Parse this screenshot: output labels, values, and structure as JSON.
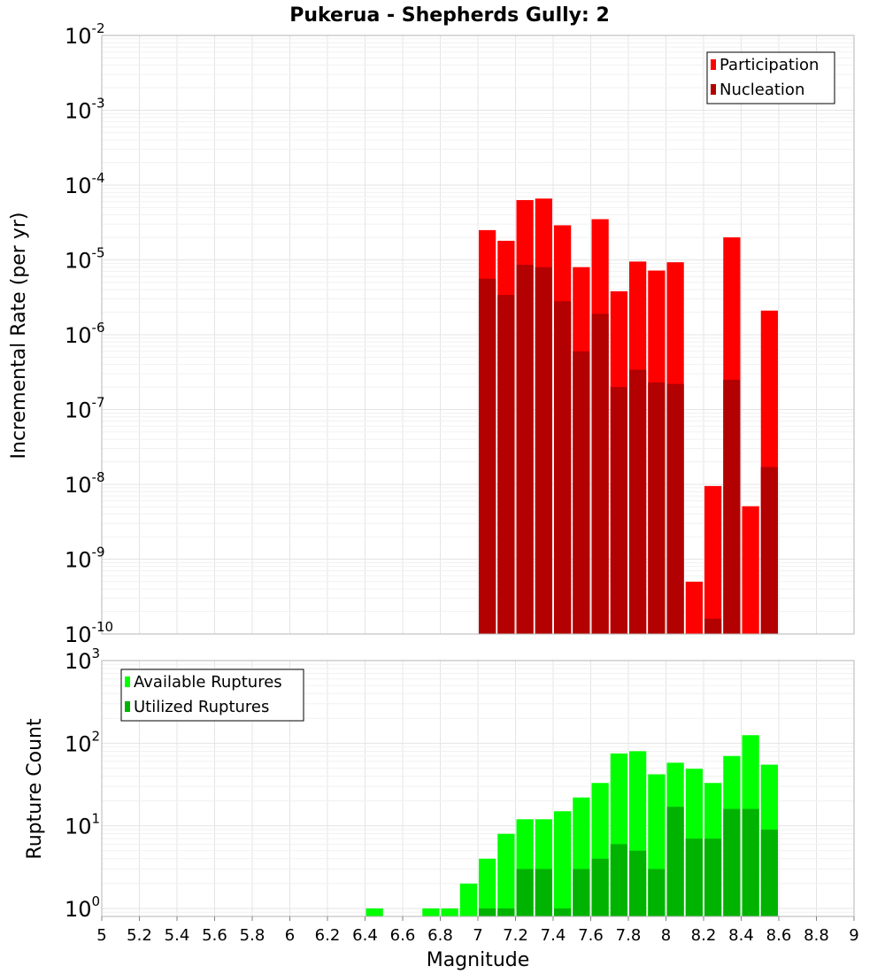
{
  "chart_data": [
    {
      "type": "bar",
      "title": "Pukerua - Shepherds Gully: 2",
      "xlabel": "",
      "ylabel": "Incremental Rate (per yr)",
      "yscale": "log",
      "ylim": [
        1e-10,
        0.01
      ],
      "xlim": [
        5,
        9
      ],
      "legend": {
        "placement": "top-right",
        "entries": [
          "Participation",
          "Nucleation"
        ]
      },
      "series": [
        {
          "name": "Participation",
          "color": "#ff0000",
          "x": [
            7.0,
            7.1,
            7.2,
            7.3,
            7.4,
            7.5,
            7.6,
            7.7,
            7.8,
            7.9,
            8.0,
            8.1,
            8.2,
            8.3,
            8.4,
            8.5
          ],
          "values": [
            2.5e-05,
            1.8e-05,
            6.3e-05,
            6.6e-05,
            2.9e-05,
            8e-06,
            3.5e-05,
            3.8e-06,
            9.5e-06,
            7.2e-06,
            9.3e-06,
            5e-10,
            9.5e-09,
            2e-05,
            5.1e-09,
            2.1e-06
          ]
        },
        {
          "name": "Nucleation",
          "color": "#b30000",
          "x": [
            7.0,
            7.1,
            7.2,
            7.3,
            7.4,
            7.5,
            7.6,
            7.7,
            7.8,
            7.9,
            8.0,
            8.2,
            8.3,
            8.5
          ],
          "values": [
            5.6e-06,
            3.4e-06,
            8.6e-06,
            8e-06,
            2.8e-06,
            6e-07,
            1.9e-06,
            2e-07,
            3.4e-07,
            2.3e-07,
            2.2e-07,
            1.6e-10,
            2.5e-07,
            1.7e-08
          ]
        }
      ]
    },
    {
      "type": "bar",
      "title": "",
      "xlabel": "Magnitude",
      "ylabel": "Rupture Count",
      "yscale": "log",
      "ylim": [
        0.8,
        1000
      ],
      "xlim": [
        5,
        9
      ],
      "xticks": [
        "5",
        "5.2",
        "5.4",
        "5.6",
        "5.8",
        "6",
        "6.2",
        "6.4",
        "6.6",
        "6.8",
        "7",
        "7.2",
        "7.4",
        "7.6",
        "7.8",
        "8",
        "8.2",
        "8.4",
        "8.6",
        "8.8",
        "9"
      ],
      "legend": {
        "placement": "top-left",
        "entries": [
          "Available Ruptures",
          "Utilized Ruptures"
        ]
      },
      "series": [
        {
          "name": "Available Ruptures",
          "color": "#00ff00",
          "x": [
            6.4,
            6.7,
            6.8,
            6.9,
            7.0,
            7.1,
            7.2,
            7.3,
            7.4,
            7.5,
            7.6,
            7.7,
            7.8,
            7.9,
            8.0,
            8.1,
            8.2,
            8.3,
            8.4,
            8.5
          ],
          "values": [
            1,
            1,
            1,
            2,
            4,
            8,
            12,
            12,
            15,
            22,
            33,
            75,
            80,
            42,
            58,
            49,
            33,
            70,
            125,
            55
          ]
        },
        {
          "name": "Utilized Ruptures",
          "color": "#00b300",
          "x": [
            7.0,
            7.1,
            7.2,
            7.3,
            7.4,
            7.5,
            7.6,
            7.7,
            7.8,
            7.9,
            8.0,
            8.1,
            8.2,
            8.3,
            8.4,
            8.5
          ],
          "values": [
            1,
            1,
            3,
            3,
            1,
            3,
            4,
            6,
            5,
            3,
            17,
            7,
            7,
            16,
            16,
            9
          ]
        }
      ]
    }
  ]
}
